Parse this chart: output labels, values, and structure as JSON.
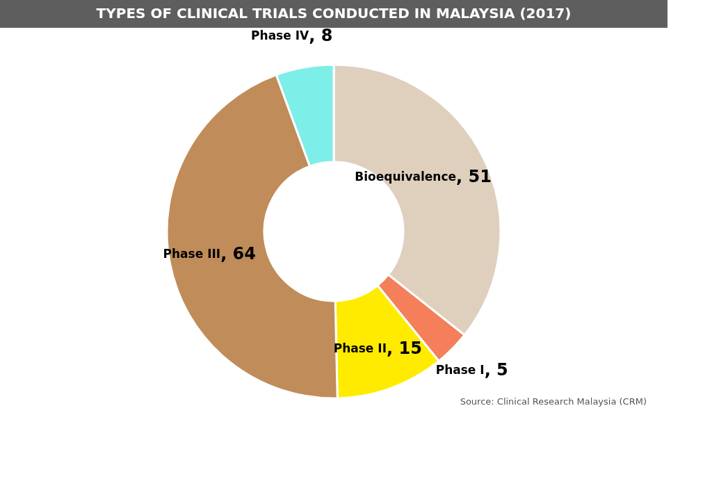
{
  "chart_data": {
    "type": "donut",
    "title": "TYPES OF CLINICAL TRIALS CONDUCTED IN MALAYSIA (2017)",
    "categories": [
      "Bioequivalence",
      "Phase I",
      "Phase II",
      "Phase III",
      "Phase IV"
    ],
    "values": [
      51,
      5,
      15,
      64,
      8
    ],
    "colors": [
      "#dfd0be",
      "#f47f5a",
      "#ffeb00",
      "#c08c59",
      "#7deee8"
    ],
    "value_labels": [
      ", 51",
      ", 5",
      ", 15",
      ", 64",
      ", 8"
    ],
    "legend": false,
    "annotations": [
      "Source: Clinical Research Malaysia (CRM)"
    ]
  }
}
